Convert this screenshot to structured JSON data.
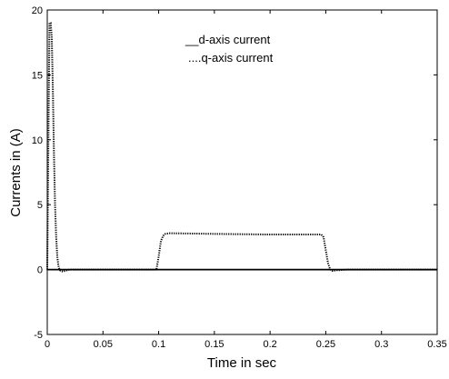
{
  "chart_data": {
    "type": "line",
    "xlabel": "Time in sec",
    "ylabel": "Currents in (A)",
    "xlim": [
      0,
      0.35
    ],
    "ylim": [
      -5,
      20
    ],
    "grid": false,
    "legend_placement": "top-center",
    "x_ticks": [
      {
        "value": 0,
        "label": "0"
      },
      {
        "value": 0.05,
        "label": "0.05"
      },
      {
        "value": 0.1,
        "label": "0.1"
      },
      {
        "value": 0.15,
        "label": "0.15"
      },
      {
        "value": 0.2,
        "label": "0.2"
      },
      {
        "value": 0.25,
        "label": "0.25"
      },
      {
        "value": 0.3,
        "label": "0.3"
      },
      {
        "value": 0.35,
        "label": "0.35"
      }
    ],
    "y_ticks": [
      {
        "value": -5,
        "label": "-5"
      },
      {
        "value": 0,
        "label": "0"
      },
      {
        "value": 5,
        "label": "5"
      },
      {
        "value": 10,
        "label": "10"
      },
      {
        "value": 15,
        "label": "15"
      },
      {
        "value": 20,
        "label": "20"
      }
    ],
    "legend": [
      {
        "marker": "__",
        "text": "d-axis current"
      },
      {
        "marker": "....",
        "text": "q-axis current"
      }
    ],
    "series": [
      {
        "name": "d-axis current",
        "style": "solid",
        "color": "#000000",
        "x": [
          0,
          0.35
        ],
        "y": [
          0,
          0
        ]
      },
      {
        "name": "q-axis current",
        "style": "dotted",
        "color": "#000000",
        "x": [
          0,
          0.001,
          0.002,
          0.003,
          0.004,
          0.005,
          0.006,
          0.007,
          0.008,
          0.009,
          0.01,
          0.011,
          0.012,
          0.014,
          0.016,
          0.018,
          0.02,
          0.025,
          0.05,
          0.098,
          0.1,
          0.102,
          0.104,
          0.106,
          0.11,
          0.15,
          0.2,
          0.246,
          0.248,
          0.25,
          0.252,
          0.254,
          0.256,
          0.26,
          0.27,
          0.35
        ],
        "y": [
          0,
          10,
          19,
          19,
          18,
          14,
          9,
          5,
          2.5,
          1,
          0.3,
          0,
          -0.1,
          -0.15,
          -0.1,
          -0.05,
          0,
          0,
          0,
          0,
          1.0,
          2.2,
          2.6,
          2.75,
          2.8,
          2.75,
          2.7,
          2.7,
          2.5,
          1.5,
          0.5,
          0,
          -0.1,
          -0.05,
          0,
          0
        ]
      }
    ]
  }
}
